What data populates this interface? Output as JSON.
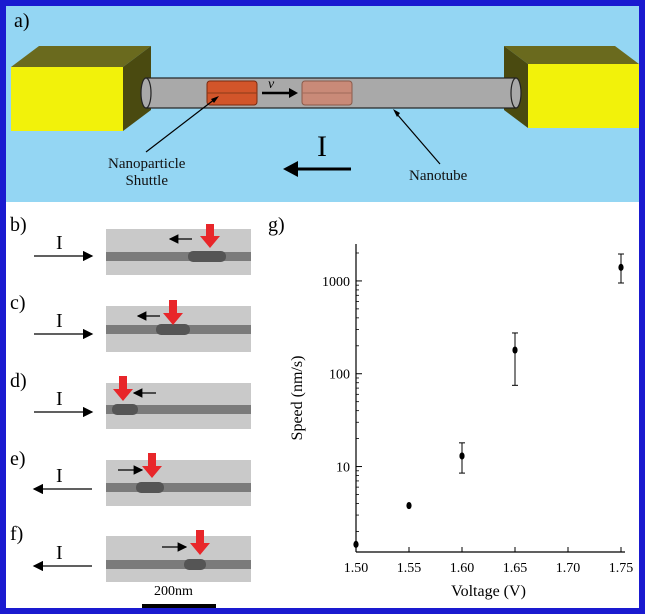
{
  "panels": {
    "a": "a)",
    "b": "b)",
    "c": "c)",
    "d": "d)",
    "e": "e)",
    "f": "f)",
    "g": "g)"
  },
  "schematic": {
    "velocity_label": "v",
    "shuttle_label_line1": "Nanoparticle",
    "shuttle_label_line2": "Shuttle",
    "tube_label": "Nanotube",
    "current_label": "I",
    "colors": {
      "background": "#94d6f3",
      "electrode": "#f2f20a",
      "electrode_shadow": "#5a5a14",
      "shuttle": "#d2552a",
      "shuttle_ghost": "#c98a78"
    }
  },
  "tem_rows": [
    {
      "current_label": "I",
      "current_direction": "right",
      "motion_direction": "left"
    },
    {
      "current_label": "I",
      "current_direction": "right",
      "motion_direction": "left"
    },
    {
      "current_label": "I",
      "current_direction": "right",
      "motion_direction": "left"
    },
    {
      "current_label": "I",
      "current_direction": "left",
      "motion_direction": "right"
    },
    {
      "current_label": "I",
      "current_direction": "left",
      "motion_direction": "right"
    }
  ],
  "scale_bar": {
    "label": "200nm"
  },
  "chart_data": {
    "type": "scatter",
    "xlabel": "Voltage (V)",
    "ylabel": "Speed (nm/s)",
    "x_scale": "linear",
    "y_scale": "log",
    "xlim": [
      1.5,
      1.75
    ],
    "ylim": [
      1.2,
      2500
    ],
    "x_ticks": [
      "1.50",
      "1.55",
      "1.60",
      "1.65",
      "1.70",
      "1.75"
    ],
    "y_ticks": [
      "10",
      "100",
      "1000"
    ],
    "points": [
      {
        "x": 1.5,
        "y": 1.45,
        "err_low": 1.45,
        "err_high": 1.45
      },
      {
        "x": 1.55,
        "y": 3.8,
        "err_low": 3.8,
        "err_high": 3.8
      },
      {
        "x": 1.6,
        "y": 13,
        "err_low": 8.5,
        "err_high": 18
      },
      {
        "x": 1.65,
        "y": 180,
        "err_low": 75,
        "err_high": 275
      },
      {
        "x": 1.75,
        "y": 1400,
        "err_low": 950,
        "err_high": 1950
      }
    ],
    "grid": false,
    "marker_color": "#000000"
  }
}
